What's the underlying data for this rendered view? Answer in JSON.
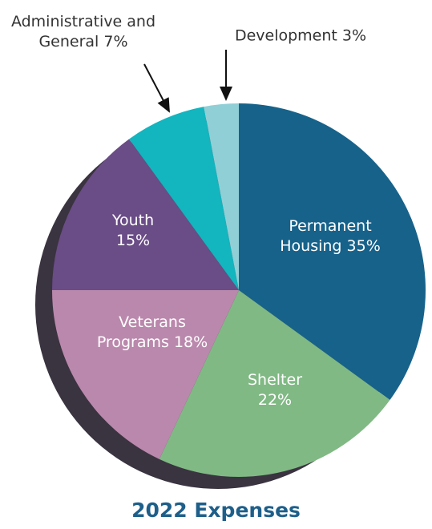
{
  "chart_data": {
    "type": "pie",
    "title": "2022 Expenses",
    "categories": [
      "Permanent Housing",
      "Shelter",
      "Veterans Programs",
      "Youth",
      "Administrative and General",
      "Development"
    ],
    "values": [
      35,
      22,
      18,
      15,
      7,
      3
    ],
    "value_labels": [
      "35%",
      "22%",
      "18%",
      "15%",
      "7%",
      "3%"
    ],
    "colors": [
      "#17628a",
      "#80b984",
      "#ba88ac",
      "#6a4c86",
      "#13b5be",
      "#90cfd6"
    ]
  }
}
